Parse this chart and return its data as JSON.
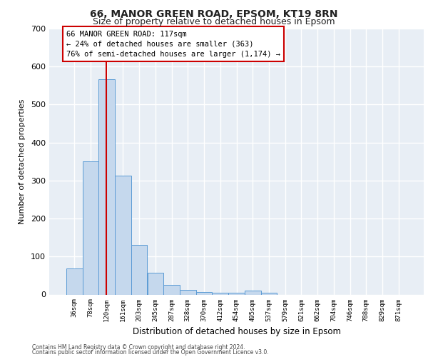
{
  "title1": "66, MANOR GREEN ROAD, EPSOM, KT19 8RN",
  "title2": "Size of property relative to detached houses in Epsom",
  "xlabel": "Distribution of detached houses by size in Epsom",
  "ylabel": "Number of detached properties",
  "categories": [
    "36sqm",
    "78sqm",
    "120sqm",
    "161sqm",
    "203sqm",
    "245sqm",
    "287sqm",
    "328sqm",
    "370sqm",
    "412sqm",
    "454sqm",
    "495sqm",
    "537sqm",
    "579sqm",
    "621sqm",
    "662sqm",
    "704sqm",
    "746sqm",
    "788sqm",
    "829sqm",
    "871sqm"
  ],
  "values": [
    68,
    350,
    567,
    312,
    130,
    57,
    25,
    13,
    7,
    5,
    5,
    10,
    5,
    0,
    0,
    0,
    0,
    0,
    0,
    0,
    0
  ],
  "bar_color": "#c5d8ed",
  "bar_edge_color": "#5b9bd5",
  "vline_x": 1.97,
  "vline_color": "#cc0000",
  "annotation_text": "66 MANOR GREEN ROAD: 117sqm\n← 24% of detached houses are smaller (363)\n76% of semi-detached houses are larger (1,174) →",
  "annotation_box_facecolor": "#ffffff",
  "annotation_box_edgecolor": "#cc0000",
  "ylim": [
    0,
    700
  ],
  "yticks": [
    0,
    100,
    200,
    300,
    400,
    500,
    600,
    700
  ],
  "axes_background": "#e8eef5",
  "grid_color": "#ffffff",
  "footer_line1": "Contains HM Land Registry data © Crown copyright and database right 2024.",
  "footer_line2": "Contains public sector information licensed under the Open Government Licence v3.0."
}
